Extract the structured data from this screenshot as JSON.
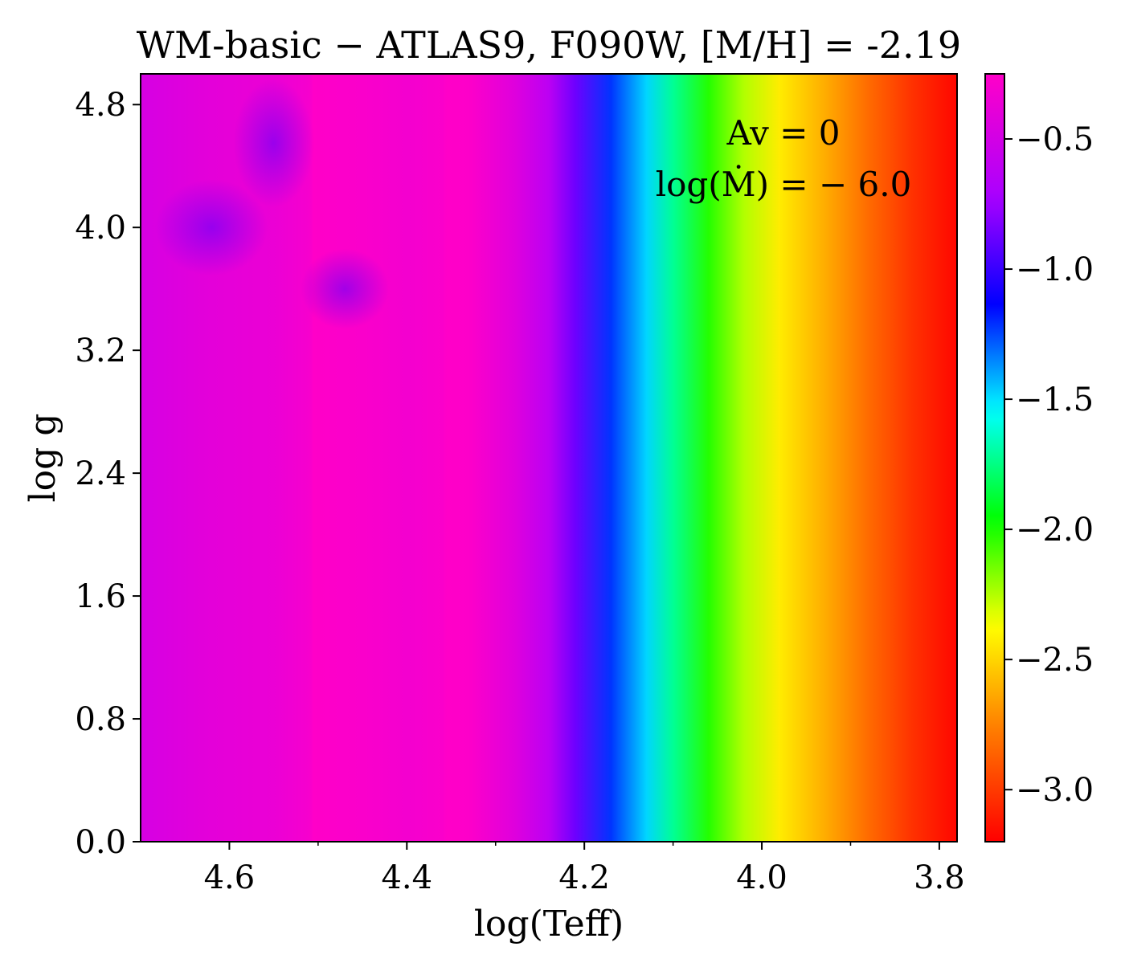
{
  "chart_data": {
    "type": "heatmap",
    "title": "WM-basic  −  ATLAS9, F090W, [M/H] = -2.19",
    "xlabel": "log(Teff)",
    "ylabel": "log g",
    "xlim": [
      4.7,
      3.78
    ],
    "ylim": [
      0.0,
      5.0
    ],
    "x_inverted": true,
    "x_ticks": [
      4.6,
      4.4,
      4.2,
      4.0,
      3.8
    ],
    "x_tick_labels": [
      "4.6",
      "4.4",
      "4.2",
      "4.0",
      "3.8"
    ],
    "x_minor_ticks": [
      4.5,
      4.3,
      4.1,
      3.9
    ],
    "y_ticks": [
      0.0,
      0.8,
      1.6,
      2.4,
      3.2,
      4.0,
      4.8
    ],
    "y_tick_labels": [
      "0.0",
      "0.8",
      "1.6",
      "2.4",
      "3.2",
      "4.0",
      "4.8"
    ],
    "colorbar": {
      "range": [
        -3.2,
        -0.25
      ],
      "ticks": [
        -0.5,
        -1.0,
        -1.5,
        -2.0,
        -2.5,
        -3.0
      ],
      "tick_labels": [
        "−0.5",
        "−1.0",
        "−1.5",
        "−2.0",
        "−2.5",
        "−3.0"
      ],
      "colormap": "gist_rainbow"
    },
    "annotations": [
      "Av  =  0",
      "log(Ṁ) = − 6.0"
    ],
    "profile_logTeff": [
      4.7,
      4.62,
      4.55,
      4.51,
      4.505,
      4.45,
      4.4,
      4.36,
      4.355,
      4.33,
      4.28,
      4.24,
      4.21,
      4.17,
      4.13,
      4.1,
      4.06,
      4.02,
      3.98,
      3.93,
      3.88,
      3.83,
      3.78
    ],
    "profile_value": [
      -0.48,
      -0.4,
      -0.36,
      -0.3,
      -0.25,
      -0.28,
      -0.31,
      -0.28,
      -0.24,
      -0.26,
      -0.42,
      -0.62,
      -0.87,
      -1.22,
      -1.48,
      -1.72,
      -2.02,
      -2.25,
      -2.43,
      -2.62,
      -2.83,
      -3.03,
      -3.18
    ]
  }
}
